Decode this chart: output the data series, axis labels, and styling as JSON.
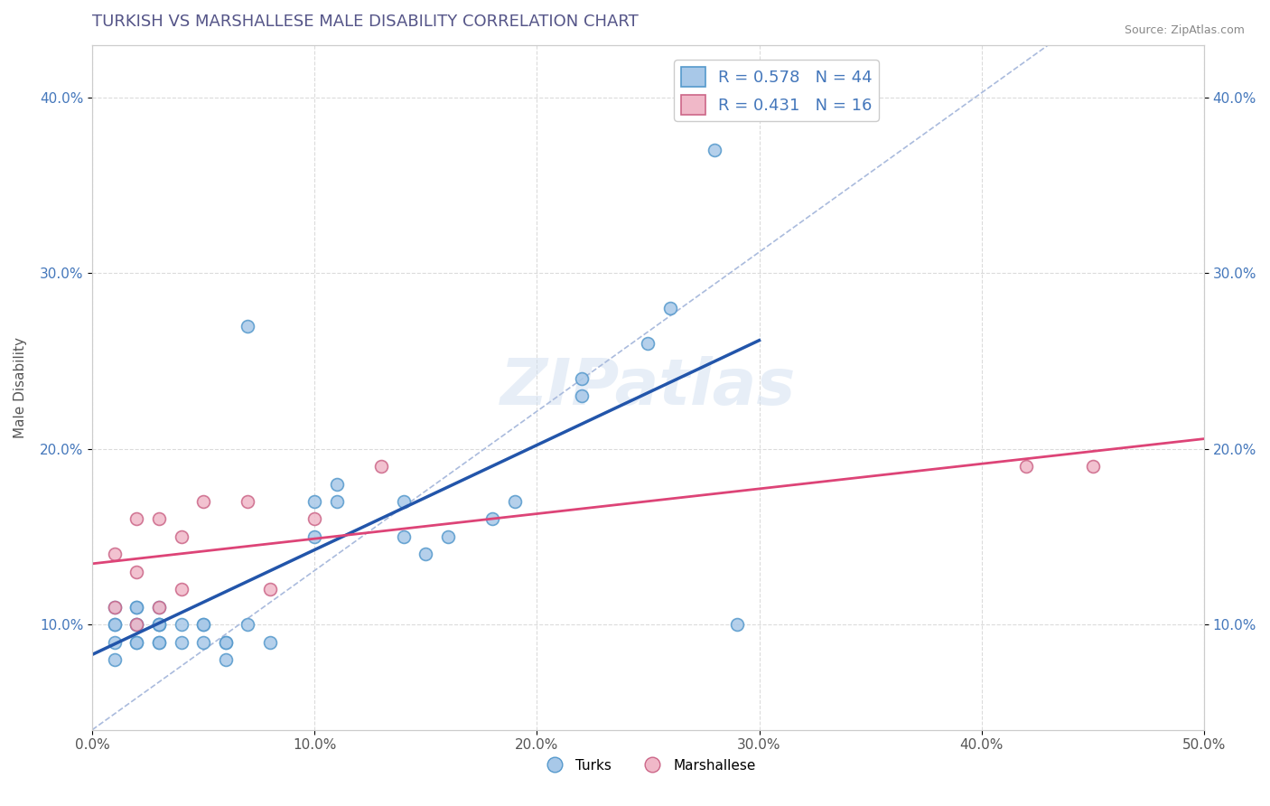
{
  "title": "TURKISH VS MARSHALLESE MALE DISABILITY CORRELATION CHART",
  "source": "Source: ZipAtlas.com",
  "xlabel": "",
  "ylabel": "Male Disability",
  "xlim": [
    0.0,
    0.5
  ],
  "ylim": [
    0.04,
    0.43
  ],
  "xticks": [
    0.0,
    0.1,
    0.2,
    0.3,
    0.4,
    0.5
  ],
  "yticks": [
    0.1,
    0.2,
    0.3,
    0.4
  ],
  "xticklabels": [
    "0.0%",
    "10.0%",
    "20.0%",
    "30.0%",
    "40.0%",
    "50.0%"
  ],
  "yticklabels": [
    "10.0%",
    "20.0%",
    "30.0%",
    "40.0%"
  ],
  "turks_R": 0.578,
  "turks_N": 44,
  "marshallese_R": 0.431,
  "marshallese_N": 16,
  "turks_color": "#a8c8e8",
  "turks_edge_color": "#5599cc",
  "marshallese_color": "#f0b8c8",
  "marshallese_edge_color": "#cc6688",
  "turks_line_color": "#2255aa",
  "marshallese_line_color": "#dd4477",
  "diag_line_color": "#aabbdd",
  "background_color": "#ffffff",
  "grid_color": "#cccccc",
  "title_color": "#555588",
  "source_color": "#888888",
  "turks_x": [
    0.01,
    0.01,
    0.01,
    0.01,
    0.01,
    0.02,
    0.02,
    0.02,
    0.02,
    0.02,
    0.02,
    0.03,
    0.03,
    0.03,
    0.03,
    0.03,
    0.03,
    0.04,
    0.04,
    0.05,
    0.05,
    0.05,
    0.06,
    0.06,
    0.06,
    0.07,
    0.07,
    0.08,
    0.1,
    0.1,
    0.11,
    0.11,
    0.14,
    0.14,
    0.15,
    0.16,
    0.18,
    0.19,
    0.22,
    0.22,
    0.25,
    0.26,
    0.28,
    0.29
  ],
  "turks_y": [
    0.08,
    0.09,
    0.1,
    0.1,
    0.11,
    0.09,
    0.09,
    0.1,
    0.1,
    0.11,
    0.11,
    0.09,
    0.09,
    0.1,
    0.1,
    0.1,
    0.11,
    0.09,
    0.1,
    0.09,
    0.1,
    0.1,
    0.08,
    0.09,
    0.09,
    0.1,
    0.27,
    0.09,
    0.15,
    0.17,
    0.17,
    0.18,
    0.15,
    0.17,
    0.14,
    0.15,
    0.16,
    0.17,
    0.23,
    0.24,
    0.26,
    0.28,
    0.37,
    0.1
  ],
  "marshallese_x": [
    0.01,
    0.01,
    0.02,
    0.02,
    0.02,
    0.03,
    0.03,
    0.04,
    0.04,
    0.05,
    0.07,
    0.08,
    0.1,
    0.13,
    0.42,
    0.45
  ],
  "marshallese_y": [
    0.11,
    0.14,
    0.1,
    0.13,
    0.16,
    0.11,
    0.16,
    0.12,
    0.15,
    0.17,
    0.17,
    0.12,
    0.16,
    0.19,
    0.19,
    0.19
  ],
  "watermark": "ZIPatlas",
  "marker_size": 100,
  "title_fontsize": 13,
  "label_fontsize": 11,
  "tick_fontsize": 11,
  "legend_fontsize": 13
}
